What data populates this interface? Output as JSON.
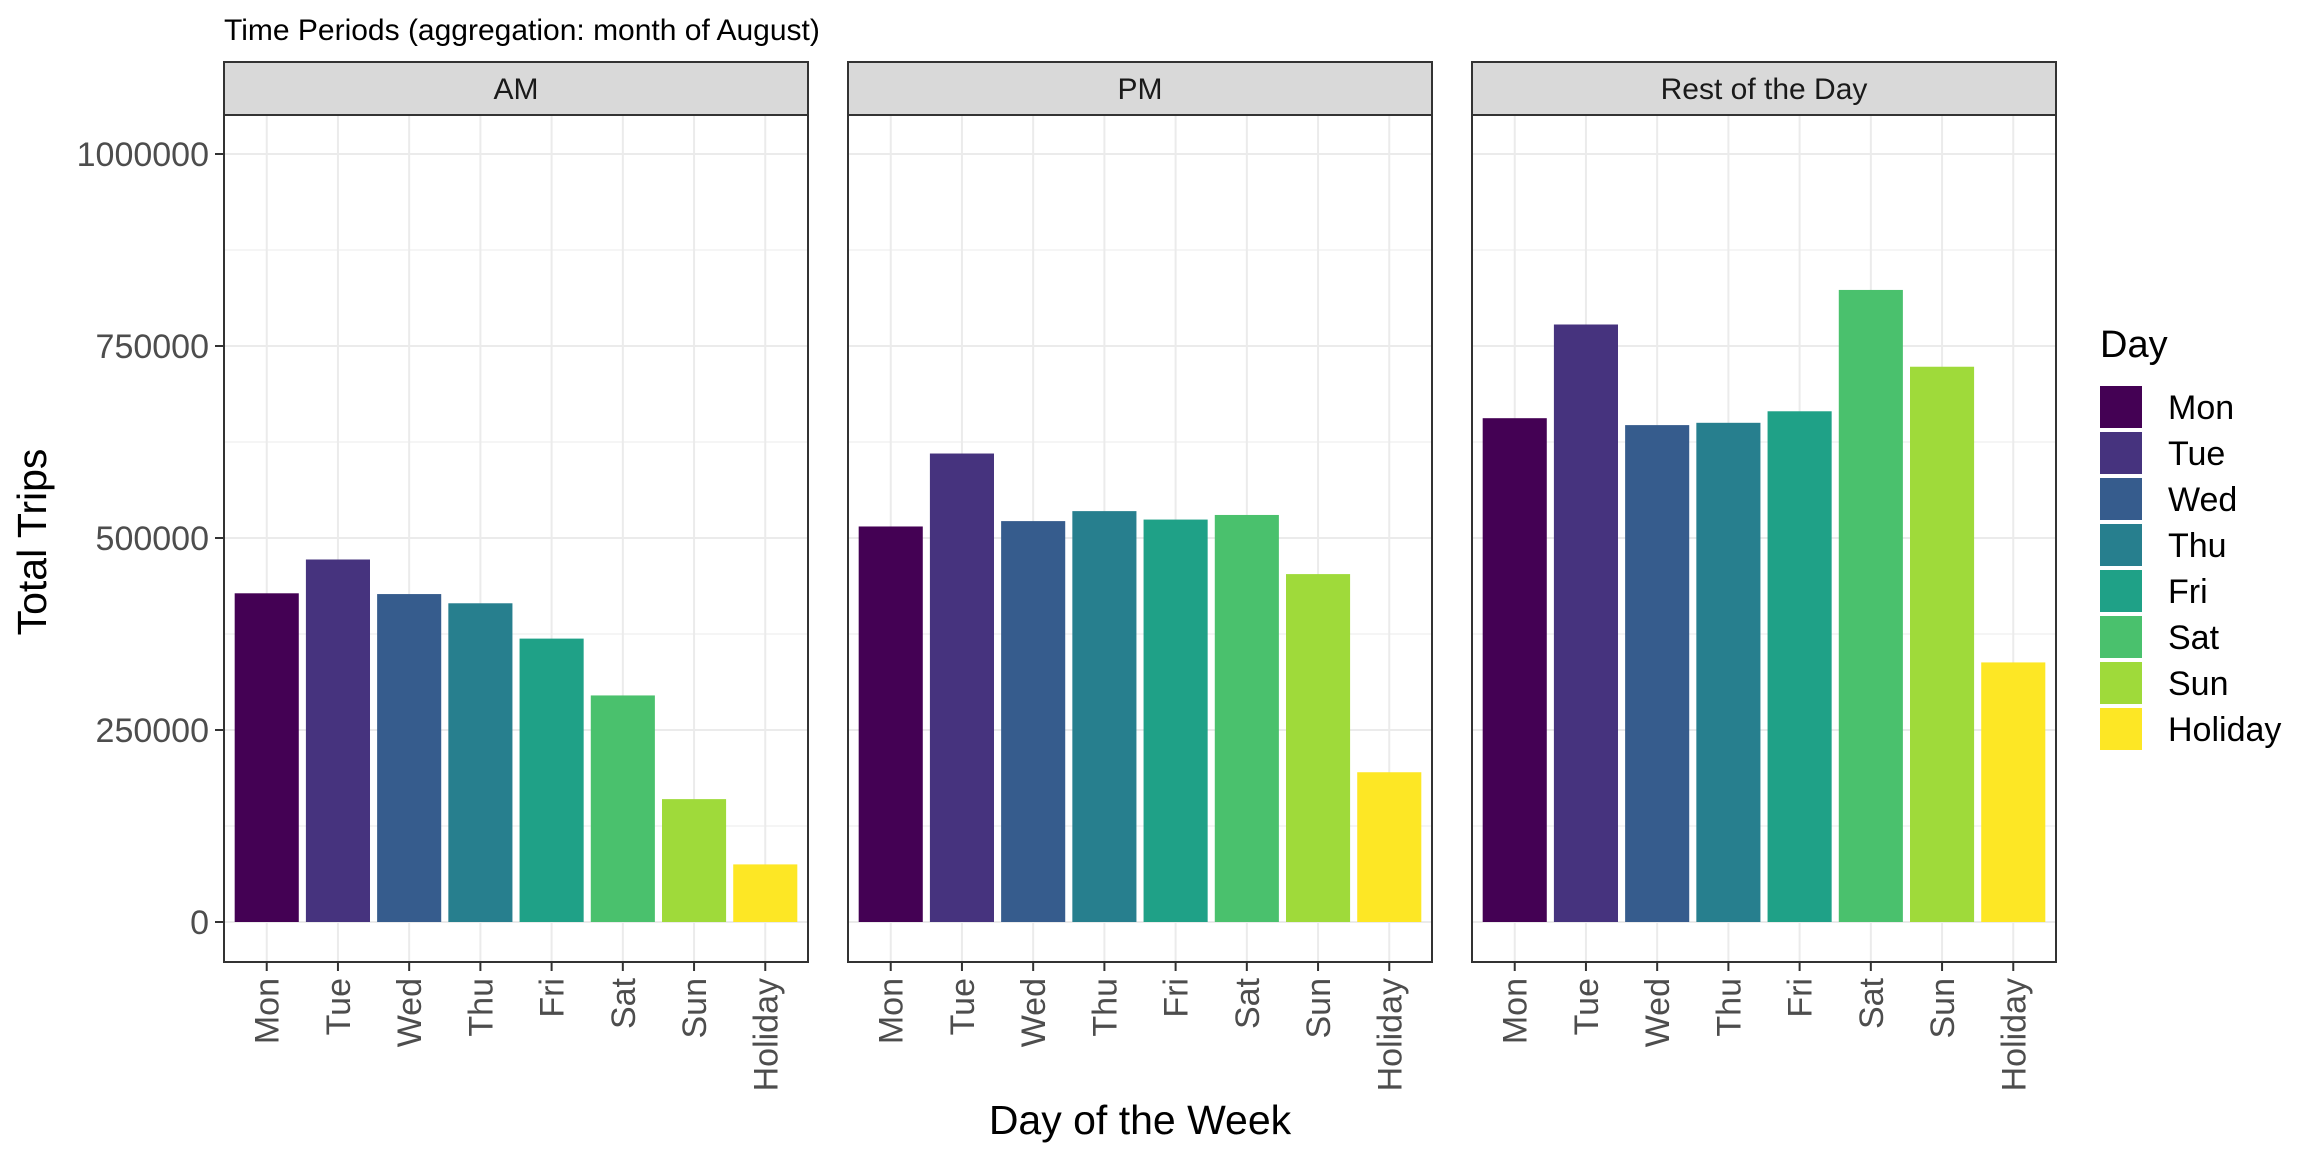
{
  "chart_data": {
    "type": "bar",
    "title": "Time Periods (aggregation: month of August)",
    "xlabel": "Day of the Week",
    "ylabel": "Total Trips",
    "ylim": [
      -50000,
      1100000
    ],
    "yticks": [
      0,
      250000,
      500000,
      750000,
      1000000
    ],
    "ytick_labels": [
      "0",
      "250000",
      "500000",
      "750000",
      "1000000"
    ],
    "categories": [
      "Mon",
      "Tue",
      "Wed",
      "Thu",
      "Fri",
      "Sat",
      "Sun",
      "Holiday"
    ],
    "colors": [
      "#440154",
      "#46337E",
      "#365C8D",
      "#277F8E",
      "#1FA187",
      "#4AC16D",
      "#9FDA3A",
      "#FDE725"
    ],
    "grid": true,
    "legend": {
      "title": "Day",
      "position": "right",
      "entries": [
        "Mon",
        "Tue",
        "Wed",
        "Thu",
        "Fri",
        "Sat",
        "Sun",
        "Holiday"
      ]
    },
    "facets": [
      {
        "name": "AM",
        "values": [
          428000,
          472000,
          427000,
          415000,
          369000,
          295000,
          160000,
          75000
        ]
      },
      {
        "name": "PM",
        "values": [
          515000,
          610000,
          522000,
          535000,
          524000,
          530000,
          453000,
          195000
        ]
      },
      {
        "name": "Rest of the Day",
        "values": [
          656000,
          778000,
          647000,
          650000,
          665000,
          823000,
          723000,
          338000
        ]
      }
    ]
  }
}
